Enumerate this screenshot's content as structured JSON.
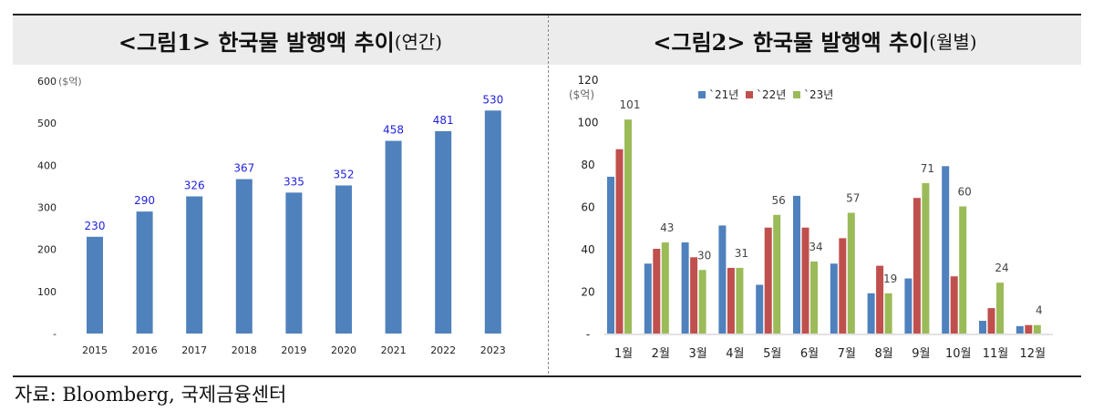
{
  "source": "자료: Bloomberg, 국제금융센터",
  "chart_data": [
    {
      "type": "bar",
      "title": "<그림1> 한국물 발행액 추이",
      "title_suffix": "(연간)",
      "ylabel": "($억)",
      "ylim": [
        0,
        600
      ],
      "yticks": [
        "-",
        "100",
        "200",
        "300",
        "400",
        "500",
        "600"
      ],
      "categories": [
        "2015",
        "2016",
        "2017",
        "2018",
        "2019",
        "2020",
        "2021",
        "2022",
        "2023"
      ],
      "values": [
        230,
        290,
        326,
        367,
        335,
        352,
        458,
        481,
        530
      ],
      "color": "#4f81bd",
      "label_color": "#1f1fdf"
    },
    {
      "type": "bar",
      "title": "<그림2> 한국물 발행액 추이",
      "title_suffix": "(월별)",
      "ylabel": "($억)",
      "ylim": [
        0,
        120
      ],
      "yticks": [
        "-",
        "20",
        "40",
        "60",
        "80",
        "100",
        "120"
      ],
      "categories": [
        "1월",
        "2월",
        "3월",
        "4월",
        "5월",
        "6월",
        "7월",
        "8월",
        "9월",
        "10월",
        "11월",
        "12월"
      ],
      "legend_position": "top",
      "series": [
        {
          "name": "`21년",
          "color": "#4f81bd",
          "values": [
            74,
            33,
            43,
            51,
            23,
            65,
            33,
            19,
            26,
            79,
            6,
            3.5
          ]
        },
        {
          "name": "`22년",
          "color": "#c0504d",
          "values": [
            87,
            40,
            36,
            31,
            50,
            50,
            45,
            32,
            64,
            27,
            12,
            4
          ]
        },
        {
          "name": "`23년",
          "color": "#9bbb59",
          "values": [
            101,
            43,
            30,
            31,
            56,
            34,
            57,
            19,
            71,
            60,
            24,
            4
          ],
          "labeled": true
        }
      ]
    }
  ]
}
